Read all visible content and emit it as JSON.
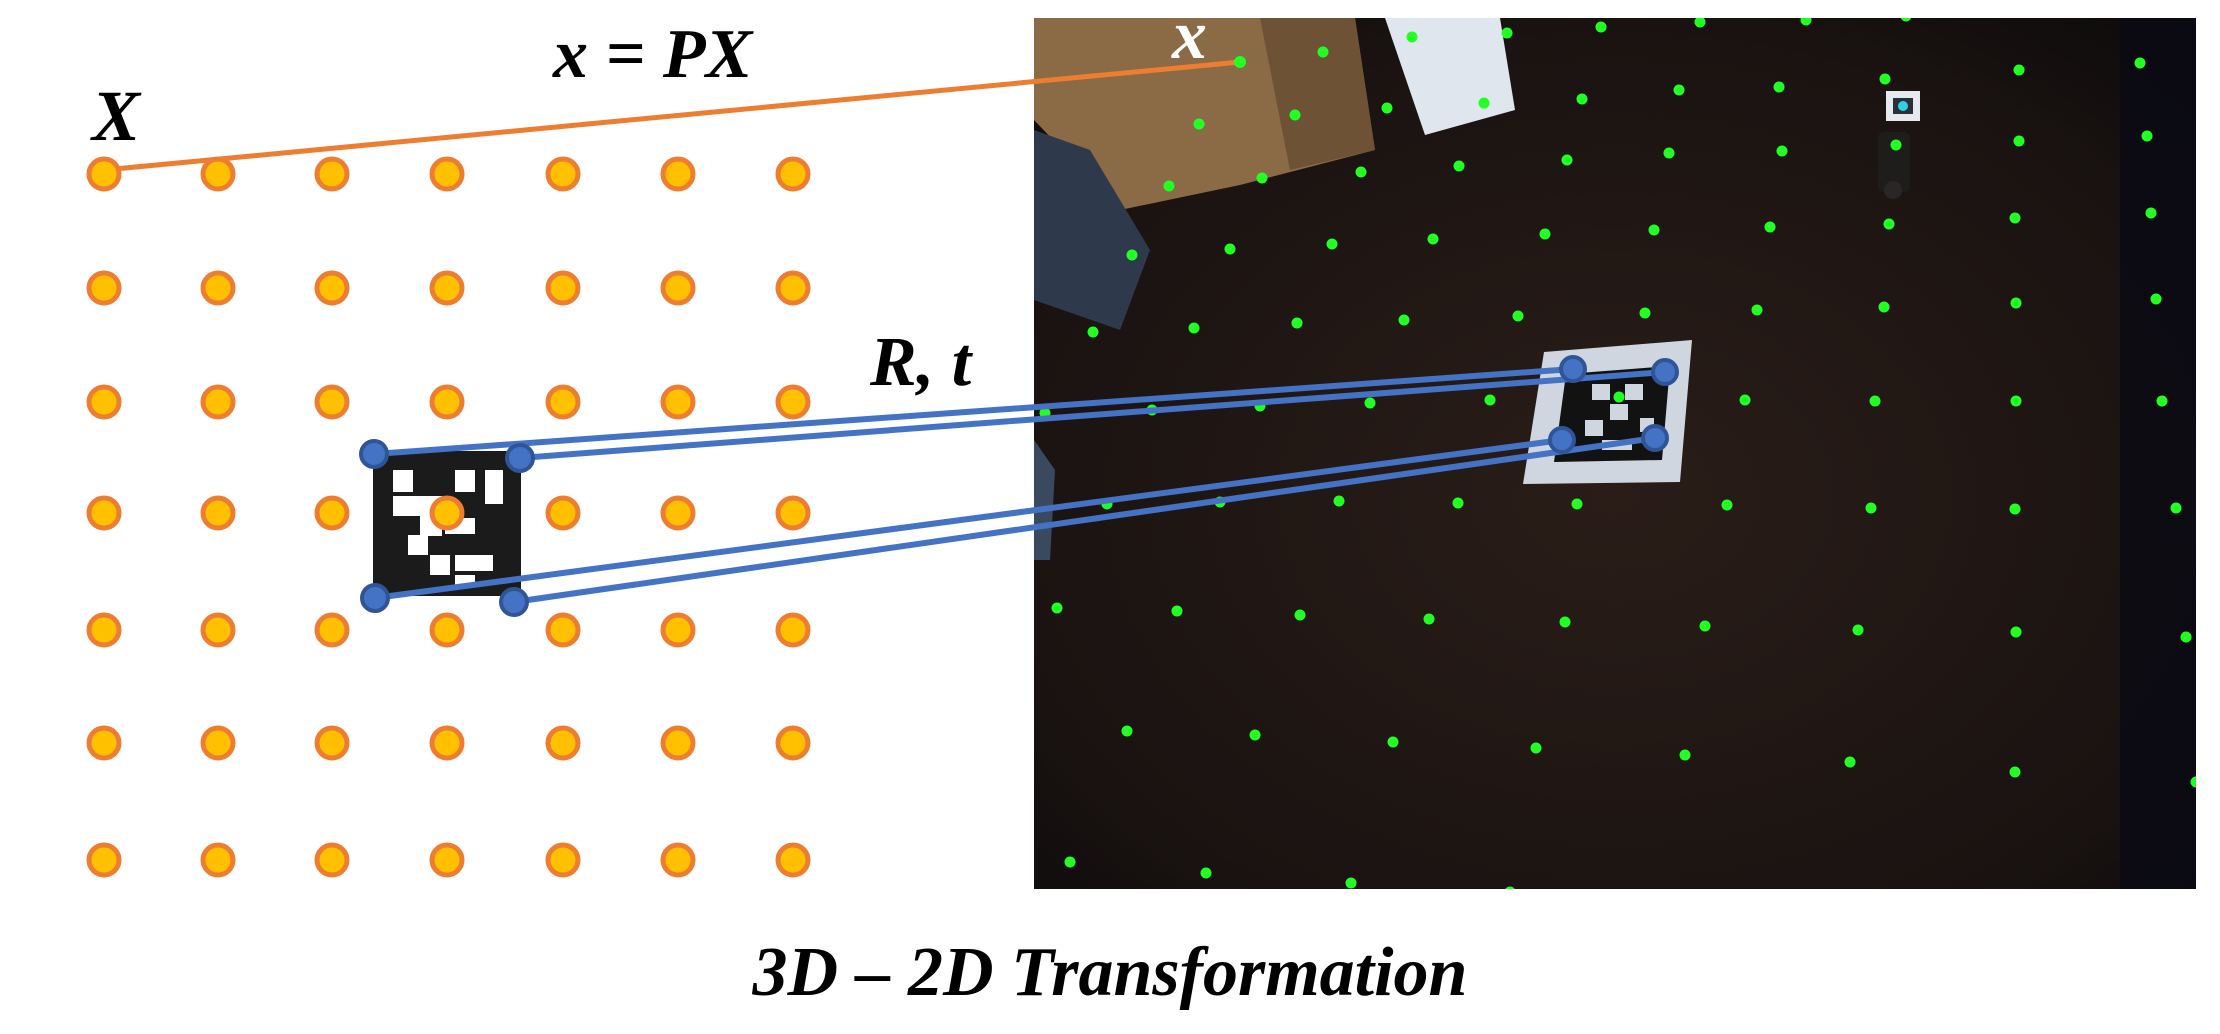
{
  "labels": {
    "world_point": "X",
    "projection_eq": "x = PX",
    "image_point": "x",
    "pose": "R, t",
    "caption": "3D – 2D Transformation"
  },
  "grid": {
    "rows": 7,
    "cols": 7
  },
  "colors": {
    "grid_dot_fill": "#FFC000",
    "grid_dot_stroke": "#ED7D31",
    "projection_line": "#ED7D31",
    "corner_lines": "#4472C4",
    "corner_dot_fill": "#4472C4",
    "corner_dot_stroke": "#2F5597",
    "green_points": "#22FF22",
    "photo_floor": "#1c1513"
  },
  "icons": {
    "world_marker": "aruco-marker-icon",
    "photo_marker": "aruco-marker-icon",
    "robot": "robot-icon"
  }
}
